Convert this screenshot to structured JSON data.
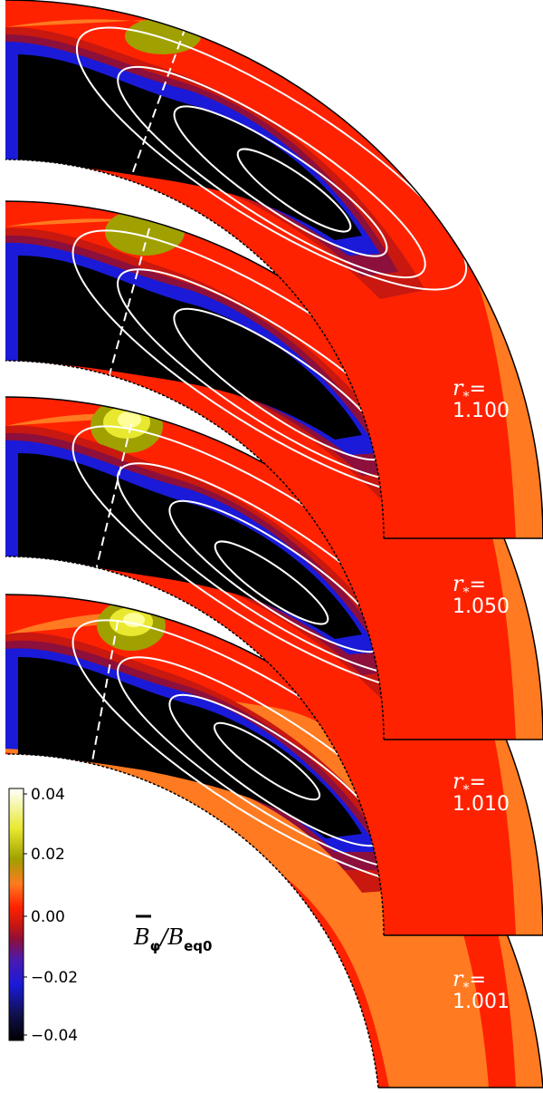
{
  "chart_data": {
    "type": "heatmap",
    "title": "",
    "quantity_label": "B̄_φ/B_eq0",
    "colorbar": {
      "label_main": "B",
      "label_sub1": "φ",
      "label_slash": "/B",
      "label_sub2": "eq0",
      "range": [
        -0.04,
        0.04
      ],
      "ticks": [
        "0.04",
        "0.02",
        "0.00",
        "−0.02",
        "−0.04"
      ],
      "colormap": [
        "#000000",
        "#10104a",
        "#1a1ad8",
        "#4a1ab0",
        "#8c0f3c",
        "#c81810",
        "#ff2200",
        "#ff7a20",
        "#a0a000",
        "#e8e830",
        "#ffffff"
      ]
    },
    "panels": [
      {
        "r_symbol": "r",
        "r_sub": "*",
        "r_eq": "=",
        "r_value": "1.100"
      },
      {
        "r_symbol": "r",
        "r_sub": "*",
        "r_eq": "=",
        "r_value": "1.050"
      },
      {
        "r_symbol": "r",
        "r_sub": "*",
        "r_eq": "=",
        "r_value": "1.010"
      },
      {
        "r_symbol": "r",
        "r_sub": "*",
        "r_eq": "=",
        "r_value": "1.001"
      }
    ],
    "contours": "white streamlines of meridional circulation",
    "dashed_line": "white dashed radial line (tangent cylinder)"
  }
}
